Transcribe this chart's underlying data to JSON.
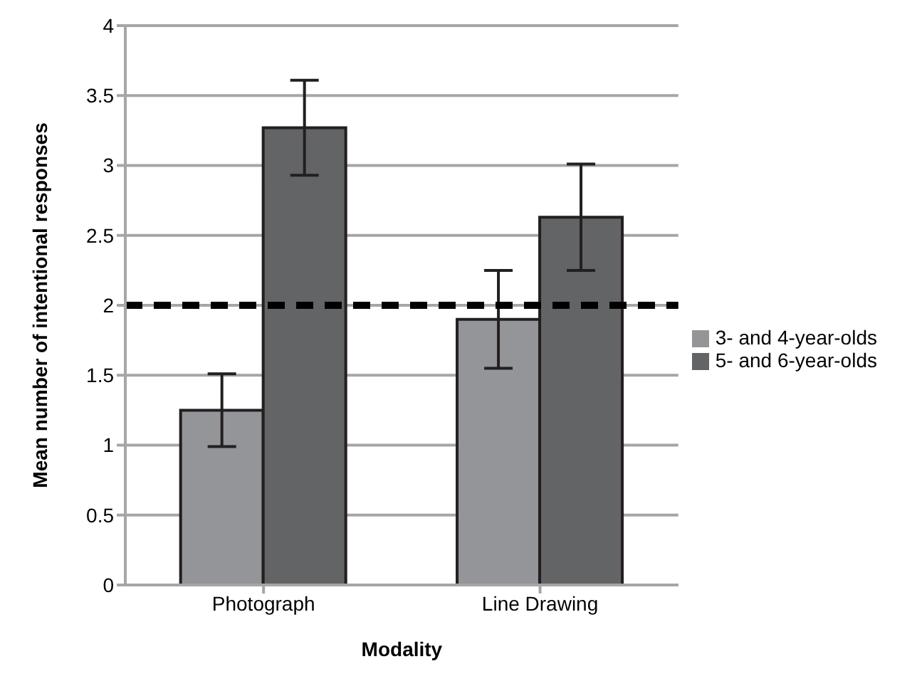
{
  "chart_data": {
    "type": "bar",
    "xlabel": "Modality",
    "ylabel": "Mean number of intentional responses",
    "categories": [
      "Photograph",
      "Line Drawing"
    ],
    "series": [
      {
        "name": "3- and 4-year-olds",
        "color": "#939598",
        "values": [
          1.25,
          1.9
        ],
        "errors": [
          0.26,
          0.35
        ]
      },
      {
        "name": "5- and 6-year-olds",
        "color": "#636466",
        "values": [
          3.27,
          2.63
        ],
        "errors": [
          0.34,
          0.38
        ]
      }
    ],
    "ylim": [
      0,
      4
    ],
    "yticks": [
      0,
      0.5,
      1,
      1.5,
      2,
      2.5,
      3,
      3.5,
      4
    ],
    "grid": "y",
    "legend": "right",
    "ref_lines": [
      {
        "axis": "y",
        "value": 2,
        "color": "#000000",
        "line_style": "dashed"
      }
    ]
  }
}
